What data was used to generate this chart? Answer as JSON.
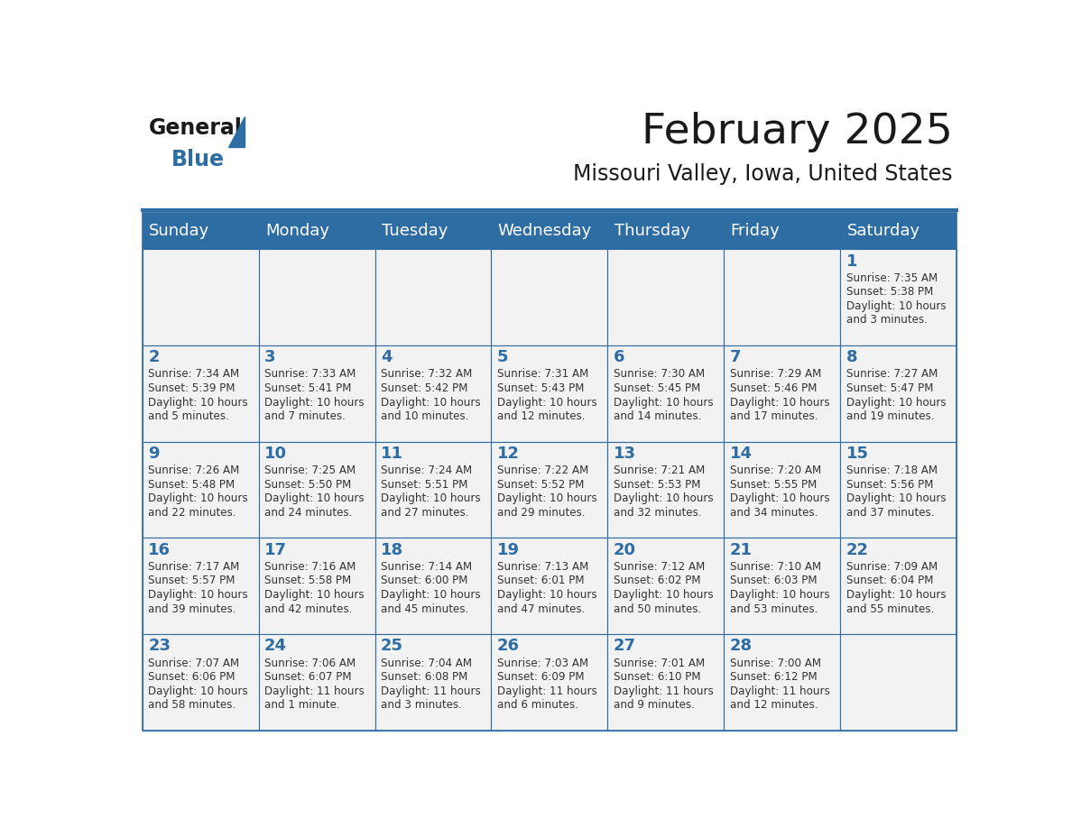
{
  "title": "February 2025",
  "subtitle": "Missouri Valley, Iowa, United States",
  "header_color": "#2E6DA4",
  "header_text_color": "#FFFFFF",
  "day_names": [
    "Sunday",
    "Monday",
    "Tuesday",
    "Wednesday",
    "Thursday",
    "Friday",
    "Saturday"
  ],
  "background_color": "#FFFFFF",
  "cell_bg_color": "#F2F2F2",
  "day_num_color": "#2E6DA4",
  "text_color": "#333333",
  "logo_text_color": "#1A1A1A",
  "logo_blue_color": "#2E6DA4",
  "weeks": [
    [
      {
        "day": null,
        "lines": []
      },
      {
        "day": null,
        "lines": []
      },
      {
        "day": null,
        "lines": []
      },
      {
        "day": null,
        "lines": []
      },
      {
        "day": null,
        "lines": []
      },
      {
        "day": null,
        "lines": []
      },
      {
        "day": 1,
        "lines": [
          "Sunrise: 7:35 AM",
          "Sunset: 5:38 PM",
          "Daylight: 10 hours",
          "and 3 minutes."
        ]
      }
    ],
    [
      {
        "day": 2,
        "lines": [
          "Sunrise: 7:34 AM",
          "Sunset: 5:39 PM",
          "Daylight: 10 hours",
          "and 5 minutes."
        ]
      },
      {
        "day": 3,
        "lines": [
          "Sunrise: 7:33 AM",
          "Sunset: 5:41 PM",
          "Daylight: 10 hours",
          "and 7 minutes."
        ]
      },
      {
        "day": 4,
        "lines": [
          "Sunrise: 7:32 AM",
          "Sunset: 5:42 PM",
          "Daylight: 10 hours",
          "and 10 minutes."
        ]
      },
      {
        "day": 5,
        "lines": [
          "Sunrise: 7:31 AM",
          "Sunset: 5:43 PM",
          "Daylight: 10 hours",
          "and 12 minutes."
        ]
      },
      {
        "day": 6,
        "lines": [
          "Sunrise: 7:30 AM",
          "Sunset: 5:45 PM",
          "Daylight: 10 hours",
          "and 14 minutes."
        ]
      },
      {
        "day": 7,
        "lines": [
          "Sunrise: 7:29 AM",
          "Sunset: 5:46 PM",
          "Daylight: 10 hours",
          "and 17 minutes."
        ]
      },
      {
        "day": 8,
        "lines": [
          "Sunrise: 7:27 AM",
          "Sunset: 5:47 PM",
          "Daylight: 10 hours",
          "and 19 minutes."
        ]
      }
    ],
    [
      {
        "day": 9,
        "lines": [
          "Sunrise: 7:26 AM",
          "Sunset: 5:48 PM",
          "Daylight: 10 hours",
          "and 22 minutes."
        ]
      },
      {
        "day": 10,
        "lines": [
          "Sunrise: 7:25 AM",
          "Sunset: 5:50 PM",
          "Daylight: 10 hours",
          "and 24 minutes."
        ]
      },
      {
        "day": 11,
        "lines": [
          "Sunrise: 7:24 AM",
          "Sunset: 5:51 PM",
          "Daylight: 10 hours",
          "and 27 minutes."
        ]
      },
      {
        "day": 12,
        "lines": [
          "Sunrise: 7:22 AM",
          "Sunset: 5:52 PM",
          "Daylight: 10 hours",
          "and 29 minutes."
        ]
      },
      {
        "day": 13,
        "lines": [
          "Sunrise: 7:21 AM",
          "Sunset: 5:53 PM",
          "Daylight: 10 hours",
          "and 32 minutes."
        ]
      },
      {
        "day": 14,
        "lines": [
          "Sunrise: 7:20 AM",
          "Sunset: 5:55 PM",
          "Daylight: 10 hours",
          "and 34 minutes."
        ]
      },
      {
        "day": 15,
        "lines": [
          "Sunrise: 7:18 AM",
          "Sunset: 5:56 PM",
          "Daylight: 10 hours",
          "and 37 minutes."
        ]
      }
    ],
    [
      {
        "day": 16,
        "lines": [
          "Sunrise: 7:17 AM",
          "Sunset: 5:57 PM",
          "Daylight: 10 hours",
          "and 39 minutes."
        ]
      },
      {
        "day": 17,
        "lines": [
          "Sunrise: 7:16 AM",
          "Sunset: 5:58 PM",
          "Daylight: 10 hours",
          "and 42 minutes."
        ]
      },
      {
        "day": 18,
        "lines": [
          "Sunrise: 7:14 AM",
          "Sunset: 6:00 PM",
          "Daylight: 10 hours",
          "and 45 minutes."
        ]
      },
      {
        "day": 19,
        "lines": [
          "Sunrise: 7:13 AM",
          "Sunset: 6:01 PM",
          "Daylight: 10 hours",
          "and 47 minutes."
        ]
      },
      {
        "day": 20,
        "lines": [
          "Sunrise: 7:12 AM",
          "Sunset: 6:02 PM",
          "Daylight: 10 hours",
          "and 50 minutes."
        ]
      },
      {
        "day": 21,
        "lines": [
          "Sunrise: 7:10 AM",
          "Sunset: 6:03 PM",
          "Daylight: 10 hours",
          "and 53 minutes."
        ]
      },
      {
        "day": 22,
        "lines": [
          "Sunrise: 7:09 AM",
          "Sunset: 6:04 PM",
          "Daylight: 10 hours",
          "and 55 minutes."
        ]
      }
    ],
    [
      {
        "day": 23,
        "lines": [
          "Sunrise: 7:07 AM",
          "Sunset: 6:06 PM",
          "Daylight: 10 hours",
          "and 58 minutes."
        ]
      },
      {
        "day": 24,
        "lines": [
          "Sunrise: 7:06 AM",
          "Sunset: 6:07 PM",
          "Daylight: 11 hours",
          "and 1 minute."
        ]
      },
      {
        "day": 25,
        "lines": [
          "Sunrise: 7:04 AM",
          "Sunset: 6:08 PM",
          "Daylight: 11 hours",
          "and 3 minutes."
        ]
      },
      {
        "day": 26,
        "lines": [
          "Sunrise: 7:03 AM",
          "Sunset: 6:09 PM",
          "Daylight: 11 hours",
          "and 6 minutes."
        ]
      },
      {
        "day": 27,
        "lines": [
          "Sunrise: 7:01 AM",
          "Sunset: 6:10 PM",
          "Daylight: 11 hours",
          "and 9 minutes."
        ]
      },
      {
        "day": 28,
        "lines": [
          "Sunrise: 7:00 AM",
          "Sunset: 6:12 PM",
          "Daylight: 11 hours",
          "and 12 minutes."
        ]
      },
      {
        "day": null,
        "lines": []
      }
    ]
  ]
}
